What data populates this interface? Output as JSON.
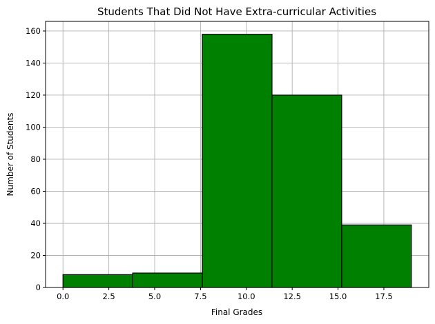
{
  "chart_data": {
    "type": "bar",
    "title": "Students That Did Not Have Extra-curricular Activities",
    "xlabel": "Final Grades",
    "ylabel": "Number of Students",
    "bins": [
      {
        "start": 0.0,
        "end": 3.8,
        "count": 8
      },
      {
        "start": 3.8,
        "end": 7.6,
        "count": 9
      },
      {
        "start": 7.6,
        "end": 11.4,
        "count": 158
      },
      {
        "start": 11.4,
        "end": 15.2,
        "count": 120
      },
      {
        "start": 15.2,
        "end": 19.0,
        "count": 39
      }
    ],
    "xlim": [
      -0.95,
      19.95
    ],
    "ylim": [
      0,
      166
    ],
    "xticks": [
      0.0,
      2.5,
      5.0,
      7.5,
      10.0,
      12.5,
      15.0,
      17.5
    ],
    "xtick_labels": [
      "0.0",
      "2.5",
      "5.0",
      "7.5",
      "10.0",
      "12.5",
      "15.0",
      "17.5"
    ],
    "yticks": [
      0,
      20,
      40,
      60,
      80,
      100,
      120,
      140,
      160
    ],
    "ytick_labels": [
      "0",
      "20",
      "40",
      "60",
      "80",
      "100",
      "120",
      "140",
      "160"
    ],
    "grid": true,
    "bar_color": "#008000",
    "edge_color": "#000000",
    "grid_color": "#b0b0b0"
  }
}
